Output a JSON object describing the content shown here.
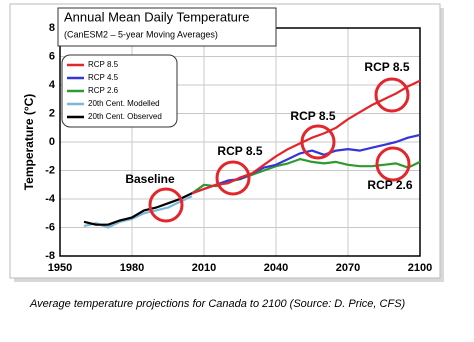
{
  "chart_data": {
    "type": "line",
    "title": "Annual Mean Daily Temperature",
    "subtitle": "(CanESM2 – 5-year Moving Averages)",
    "y_label": "Temperature (°C)",
    "caption": "Average temperature projections for Canada to 2100 (Source: D. Price, CFS)",
    "xlim": [
      1950,
      2100
    ],
    "xticks": [
      1950,
      1980,
      2010,
      2040,
      2070,
      2100
    ],
    "ylim": [
      -8,
      8
    ],
    "yticks": [
      -8,
      -6,
      -4,
      -2,
      0,
      2,
      4,
      6,
      8
    ],
    "grid": true,
    "legend": "upper left",
    "series": [
      {
        "name": "RCP 8.5",
        "color": "#e3262b",
        "x": [
          2005,
          2010,
          2015,
          2020,
          2025,
          2030,
          2035,
          2040,
          2045,
          2050,
          2055,
          2060,
          2065,
          2070,
          2075,
          2080,
          2085,
          2090,
          2095,
          2100
        ],
        "values": [
          -3.6,
          -3.3,
          -3.0,
          -2.9,
          -2.5,
          -2.2,
          -1.6,
          -1.0,
          -0.5,
          -0.1,
          0.3,
          0.6,
          1.0,
          1.6,
          2.1,
          2.6,
          3.0,
          3.4,
          3.9,
          4.3
        ]
      },
      {
        "name": "RCP 4.5",
        "color": "#3636d6",
        "x": [
          2005,
          2010,
          2015,
          2020,
          2025,
          2030,
          2035,
          2040,
          2045,
          2050,
          2055,
          2060,
          2065,
          2070,
          2075,
          2080,
          2085,
          2090,
          2095,
          2100
        ],
        "values": [
          -3.6,
          -3.3,
          -3.0,
          -2.7,
          -2.6,
          -2.2,
          -1.8,
          -1.6,
          -1.2,
          -0.8,
          -0.6,
          -0.9,
          -0.6,
          -0.5,
          -0.6,
          -0.4,
          -0.2,
          0.0,
          0.3,
          0.5
        ]
      },
      {
        "name": "RCP 2.6",
        "color": "#2f9a2f",
        "x": [
          2005,
          2010,
          2015,
          2020,
          2025,
          2030,
          2035,
          2040,
          2045,
          2050,
          2055,
          2060,
          2065,
          2070,
          2075,
          2080,
          2085,
          2090,
          2095,
          2100
        ],
        "values": [
          -3.6,
          -3.0,
          -3.1,
          -2.8,
          -2.6,
          -2.3,
          -2.0,
          -1.7,
          -1.5,
          -1.2,
          -1.4,
          -1.5,
          -1.4,
          -1.6,
          -1.7,
          -1.7,
          -1.6,
          -1.5,
          -1.8,
          -1.4
        ]
      },
      {
        "name": "20th Cent. Modelled",
        "color": "#7cb8d8",
        "x": [
          1960,
          1965,
          1970,
          1975,
          1980,
          1985,
          1990,
          1995,
          2000,
          2005
        ],
        "values": [
          -5.9,
          -5.7,
          -6.0,
          -5.6,
          -5.4,
          -5.0,
          -4.8,
          -4.6,
          -4.2,
          -3.8
        ]
      },
      {
        "name": "20th Cent. Observed",
        "color": "#000000",
        "x": [
          1960,
          1965,
          1970,
          1975,
          1980,
          1985,
          1990,
          1995,
          2000,
          2005
        ],
        "values": [
          -5.6,
          -5.8,
          -5.8,
          -5.5,
          -5.3,
          -4.8,
          -4.6,
          -4.3,
          -4.0,
          -3.6
        ]
      }
    ],
    "annotations": [
      "Baseline",
      "RCP 8.5",
      "RCP 8.5",
      "RCP 8.5",
      "RCP 2.6"
    ]
  }
}
